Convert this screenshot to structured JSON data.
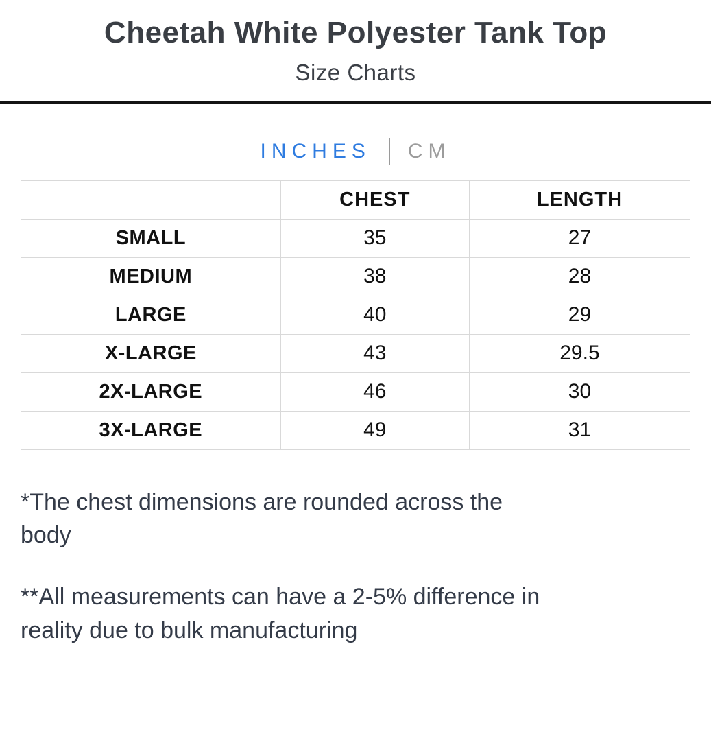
{
  "page": {
    "title": "Cheetah White Polyester Tank Top",
    "subtitle": "Size Charts"
  },
  "unit_tabs": {
    "inches_label": "INCHES",
    "cm_label": "CM",
    "active_tab": "INCHES"
  },
  "size_table": {
    "columns": [
      "",
      "CHEST",
      "LENGTH"
    ],
    "rows": [
      {
        "size": "SMALL",
        "chest": "35",
        "length": "27"
      },
      {
        "size": "MEDIUM",
        "chest": "38",
        "length": "28"
      },
      {
        "size": "LARGE",
        "chest": "40",
        "length": "29"
      },
      {
        "size": "X-LARGE",
        "chest": "43",
        "length": "29.5"
      },
      {
        "size": "2X-LARGE",
        "chest": "46",
        "length": "30"
      },
      {
        "size": "3X-LARGE",
        "chest": "49",
        "length": "31"
      }
    ]
  },
  "notes": {
    "chest_note": "*The chest dimensions are rounded across the body",
    "tolerance_note": "**All measurements can have a 2-5% difference in reality due to bulk manufacturing"
  },
  "colors": {
    "accent_blue": "#2f7ce0",
    "inactive_gray": "#9c9c9c",
    "title_text": "#3a3e44",
    "note_text": "#343b48",
    "table_border": "#d9d9d9",
    "divider_black": "#141414"
  }
}
